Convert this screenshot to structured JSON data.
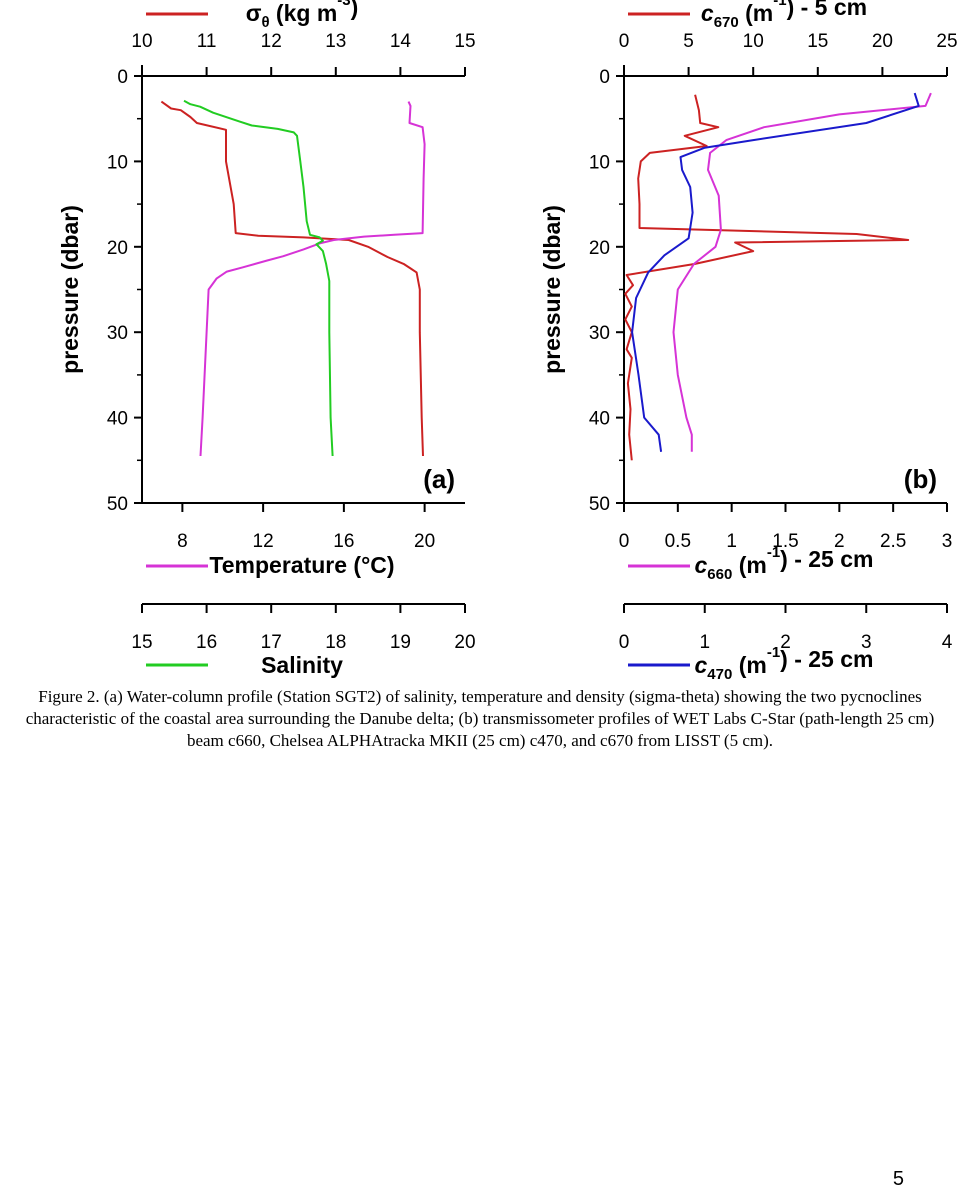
{
  "chart_data": [
    {
      "type": "line",
      "panel": "(a)",
      "title": "",
      "ylabel": "pressure (dbar)",
      "ylim": [
        0,
        50
      ],
      "yticks": [
        "0",
        "10",
        "20",
        "30",
        "40",
        "50"
      ],
      "grid": false,
      "axes": {
        "density": {
          "label_main": "σ",
          "label_sub": "θ",
          "label_unit": " (kg m",
          "label_exp": "-3",
          "label_end": ")",
          "range": [
            10,
            15
          ],
          "ticks": [
            "10",
            "11",
            "12",
            "13",
            "14",
            "15"
          ],
          "color": "#cc2222"
        },
        "temperature": {
          "label": "Temperature (°C)",
          "range": [
            6,
            22
          ],
          "ticks": [
            "8",
            "12",
            "16",
            "20"
          ],
          "color": "#d633d6"
        },
        "salinity": {
          "label": "Salinity",
          "range": [
            15,
            20
          ],
          "ticks": [
            "15",
            "16",
            "17",
            "18",
            "19",
            "20"
          ],
          "color": "#22cc22"
        }
      },
      "series": [
        {
          "name": "sigma-theta",
          "axis": "density",
          "color": "#cc2222",
          "points": [
            [
              10.3,
              3
            ],
            [
              10.45,
              3.8
            ],
            [
              10.6,
              4
            ],
            [
              10.75,
              4.8
            ],
            [
              10.85,
              5.5
            ],
            [
              11.3,
              6.3
            ],
            [
              11.3,
              10
            ],
            [
              11.42,
              15
            ],
            [
              11.45,
              18.4
            ],
            [
              11.8,
              18.7
            ],
            [
              12.5,
              18.9
            ],
            [
              13.2,
              19.2
            ],
            [
              13.5,
              20
            ],
            [
              13.8,
              21.2
            ],
            [
              14.05,
              22
            ],
            [
              14.15,
              22.5
            ],
            [
              14.25,
              23
            ],
            [
              14.3,
              25
            ],
            [
              14.3,
              30
            ],
            [
              14.33,
              40
            ],
            [
              14.35,
              44.5
            ]
          ]
        },
        {
          "name": "temperature",
          "axis": "temperature",
          "color": "#d633d6",
          "points": [
            [
              19.2,
              3
            ],
            [
              19.3,
              3.5
            ],
            [
              19.25,
              5.5
            ],
            [
              19.9,
              6
            ],
            [
              20,
              8
            ],
            [
              19.95,
              12
            ],
            [
              19.9,
              18.4
            ],
            [
              18.5,
              18.6
            ],
            [
              17,
              18.8
            ],
            [
              15.5,
              19.2
            ],
            [
              14.8,
              19.6
            ],
            [
              14,
              20.3
            ],
            [
              13,
              21.1
            ],
            [
              12.2,
              21.6
            ],
            [
              11,
              22.4
            ],
            [
              10.2,
              22.9
            ],
            [
              9.7,
              23.7
            ],
            [
              9.3,
              25
            ],
            [
              9.2,
              30
            ],
            [
              9,
              40
            ],
            [
              8.9,
              44.5
            ]
          ]
        },
        {
          "name": "salinity",
          "axis": "salinity",
          "color": "#22cc22",
          "points": [
            [
              15.65,
              2.9
            ],
            [
              15.75,
              3.3
            ],
            [
              15.9,
              3.6
            ],
            [
              16.1,
              4.3
            ],
            [
              16.5,
              5.3
            ],
            [
              16.7,
              5.8
            ],
            [
              17.1,
              6.2
            ],
            [
              17.35,
              6.6
            ],
            [
              17.4,
              7
            ],
            [
              17.45,
              10
            ],
            [
              17.5,
              13
            ],
            [
              17.55,
              17
            ],
            [
              17.6,
              18.6
            ],
            [
              17.75,
              18.9
            ],
            [
              17.8,
              19.3
            ],
            [
              17.7,
              19.7
            ],
            [
              17.8,
              20.5
            ],
            [
              17.85,
              22
            ],
            [
              17.9,
              24
            ],
            [
              17.9,
              30
            ],
            [
              17.92,
              40
            ],
            [
              17.95,
              44.5
            ]
          ]
        }
      ]
    },
    {
      "type": "line",
      "panel": "(b)",
      "title": "",
      "ylabel": "pressure (dbar)",
      "ylim": [
        0,
        50
      ],
      "yticks": [
        "0",
        "10",
        "20",
        "30",
        "40",
        "50"
      ],
      "grid": false,
      "axes": {
        "c670": {
          "label_main": "c",
          "label_sub": "670",
          "label_rest": " (m",
          "label_exp": "-1",
          "label_end": ") - 5 cm",
          "range": [
            0,
            25
          ],
          "ticks": [
            "0",
            "5",
            "10",
            "15",
            "20",
            "25"
          ],
          "color": "#cc2222"
        },
        "c660": {
          "label_main": "c",
          "label_sub": "660",
          "label_rest": " (m",
          "label_exp": "-1",
          "label_end": ") - 25 cm",
          "range": [
            0,
            3
          ],
          "ticks": [
            "0",
            "0.5",
            "1",
            "1.5",
            "2",
            "2.5",
            "3"
          ],
          "color": "#d633d6"
        },
        "c470": {
          "label_main": "c",
          "label_sub": "470",
          "label_rest": " (m",
          "label_exp": "-1",
          "label_end": ") - 25 cm",
          "range": [
            0,
            4
          ],
          "ticks": [
            "0",
            "1",
            "2",
            "3",
            "4"
          ],
          "color": "#1a1acc"
        }
      },
      "series": [
        {
          "name": "c670 LISST",
          "axis": "c670",
          "color": "#cc2222",
          "points": [
            [
              5.5,
              2.2
            ],
            [
              5.8,
              4
            ],
            [
              5.9,
              5.5
            ],
            [
              7.3,
              6
            ],
            [
              4.7,
              7
            ],
            [
              6.4,
              8.2
            ],
            [
              2,
              9
            ],
            [
              1.3,
              10
            ],
            [
              1.1,
              12
            ],
            [
              1.2,
              15
            ],
            [
              1.2,
              17.8
            ],
            [
              18,
              18.5
            ],
            [
              22,
              19.2
            ],
            [
              8.6,
              19.5
            ],
            [
              10,
              20.5
            ],
            [
              5.5,
              22
            ],
            [
              0.2,
              23.3
            ],
            [
              0.7,
              24.5
            ],
            [
              0.1,
              25.5
            ],
            [
              0.6,
              27
            ],
            [
              0.1,
              28.5
            ],
            [
              0.6,
              30
            ],
            [
              0.2,
              32
            ],
            [
              0.6,
              33
            ],
            [
              0.3,
              36
            ],
            [
              0.5,
              39
            ],
            [
              0.4,
              42
            ],
            [
              0.6,
              45
            ]
          ]
        },
        {
          "name": "c660 WET Labs C-Star",
          "axis": "c660",
          "color": "#d633d6",
          "points": [
            [
              2.85,
              2
            ],
            [
              2.8,
              3.5
            ],
            [
              2,
              4.5
            ],
            [
              1.3,
              6
            ],
            [
              0.95,
              7.5
            ],
            [
              0.8,
              9
            ],
            [
              0.78,
              11
            ],
            [
              0.88,
              14
            ],
            [
              0.9,
              18
            ],
            [
              0.85,
              20
            ],
            [
              0.65,
              22
            ],
            [
              0.5,
              25
            ],
            [
              0.46,
              30
            ],
            [
              0.5,
              35
            ],
            [
              0.58,
              40
            ],
            [
              0.63,
              42
            ],
            [
              0.63,
              44
            ]
          ]
        },
        {
          "name": "c470 Chelsea ALPHAtracka",
          "axis": "c470",
          "color": "#1a1acc",
          "points": [
            [
              3.6,
              2
            ],
            [
              3.65,
              3.5
            ],
            [
              3,
              5.5
            ],
            [
              1.6,
              7.5
            ],
            [
              1,
              8.4
            ],
            [
              0.7,
              9.5
            ],
            [
              0.72,
              11
            ],
            [
              0.82,
              13
            ],
            [
              0.85,
              16
            ],
            [
              0.8,
              19
            ],
            [
              0.5,
              21
            ],
            [
              0.3,
              23
            ],
            [
              0.15,
              26
            ],
            [
              0.1,
              30
            ],
            [
              0.18,
              35
            ],
            [
              0.25,
              40
            ],
            [
              0.43,
              42
            ],
            [
              0.46,
              44
            ]
          ]
        }
      ]
    }
  ],
  "panel_labels": {
    "a": "(a)",
    "b": "(b)"
  },
  "caption": "Figure 2. (a) Water-column profile (Station SGT2) of salinity, temperature and density (sigma-theta) showing the two pycnoclines characteristic of the coastal area surrounding the Danube delta; (b) transmissometer profiles of WET Labs C-Star (path-length 25 cm) beam c660, Chelsea ALPHAtracka MKII (25 cm) c470, and c670 from LISST (5 cm).",
  "page_number": "5"
}
